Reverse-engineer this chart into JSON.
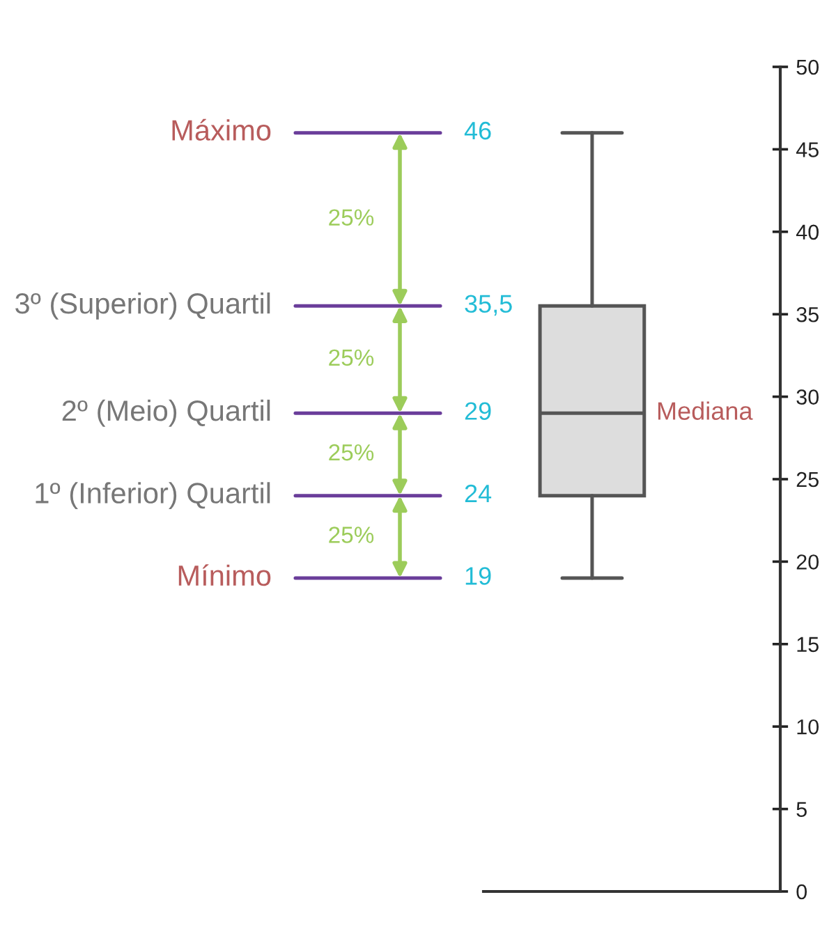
{
  "chart_data": {
    "type": "box",
    "categories": [
      null
    ],
    "boxes": [
      {
        "low": 19,
        "q1": 24,
        "median": 29,
        "q3": 35.5,
        "high": 46
      }
    ],
    "ylim": [
      0,
      50
    ],
    "yticks": [
      0,
      5,
      10,
      15,
      20,
      25,
      30,
      35,
      40,
      45,
      50
    ],
    "grid": false,
    "annotations": [
      "Máximo",
      "3º (Superior) Quartil",
      "2º (Meio) Quartil",
      "1º (Inferior) Quartil",
      "Mínimo",
      "46",
      "35,5",
      "29",
      "24",
      "19",
      "Mediana",
      "25%",
      "25%",
      "25%",
      "25%"
    ]
  }
}
